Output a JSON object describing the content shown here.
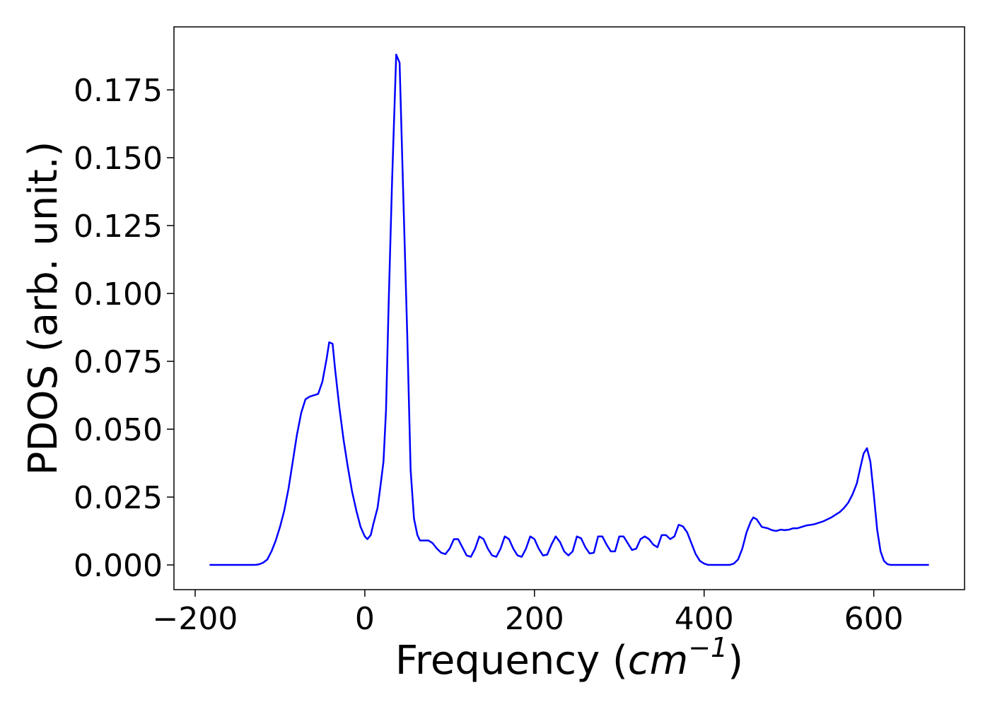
{
  "chart_data": {
    "type": "line",
    "xlabel_parts": [
      "Frequency (",
      "cm",
      "−1",
      ")"
    ],
    "ylabel": "PDOS (arb. unit.)",
    "xlim": [
      -225,
      707
    ],
    "ylim": [
      -0.0091,
      0.1982
    ],
    "xticks": [
      {
        "value": -200,
        "label": "−200"
      },
      0,
      200,
      400,
      600
    ],
    "yticks": [
      {
        "value": 0,
        "label": "0.000"
      },
      {
        "value": 0.025,
        "label": "0.025"
      },
      {
        "value": 0.05,
        "label": "0.050"
      },
      {
        "value": 0.075,
        "label": "0.075"
      },
      {
        "value": 0.1,
        "label": "0.100"
      },
      {
        "value": 0.125,
        "label": "0.125"
      },
      {
        "value": 0.15,
        "label": "0.150"
      },
      {
        "value": 0.175,
        "label": "0.175"
      }
    ],
    "series": [
      {
        "color": "#0000ff",
        "x": [
          -183,
          -170,
          -150,
          -130,
          -125,
          -120,
          -115,
          -110,
          -105,
          -100,
          -95,
          -90,
          -85,
          -80,
          -75,
          -70,
          -65,
          -60,
          -55,
          -50,
          -45,
          -42,
          -38,
          -35,
          -30,
          -25,
          -20,
          -15,
          -10,
          -5,
          0,
          3,
          7,
          10,
          15,
          18,
          22,
          25,
          28,
          32,
          37,
          41,
          45,
          50,
          54,
          58,
          62,
          65,
          70,
          75,
          80,
          85,
          90,
          95,
          100,
          105,
          110,
          115,
          120,
          125,
          130,
          135,
          140,
          145,
          150,
          155,
          160,
          165,
          170,
          175,
          180,
          185,
          190,
          195,
          200,
          205,
          210,
          215,
          220,
          225,
          230,
          235,
          240,
          245,
          250,
          255,
          260,
          265,
          270,
          275,
          280,
          285,
          290,
          295,
          300,
          305,
          310,
          315,
          320,
          325,
          330,
          335,
          340,
          345,
          350,
          355,
          360,
          365,
          370,
          375,
          380,
          385,
          390,
          395,
          400,
          405,
          430,
          435,
          440,
          445,
          450,
          455,
          458,
          462,
          468,
          475,
          480,
          485,
          490,
          495,
          500,
          505,
          510,
          515,
          520,
          530,
          540,
          550,
          560,
          565,
          570,
          575,
          580,
          585,
          588,
          592,
          596,
          600,
          604,
          608,
          612,
          616,
          620,
          665
        ],
        "values": [
          0,
          0,
          0,
          0,
          0.0002,
          0.0008,
          0.002,
          0.005,
          0.009,
          0.014,
          0.02,
          0.028,
          0.038,
          0.048,
          0.056,
          0.061,
          0.062,
          0.0625,
          0.063,
          0.0675,
          0.076,
          0.082,
          0.0815,
          0.072,
          0.058,
          0.046,
          0.036,
          0.027,
          0.02,
          0.014,
          0.0105,
          0.0095,
          0.011,
          0.015,
          0.021,
          0.028,
          0.038,
          0.057,
          0.095,
          0.14,
          0.188,
          0.185,
          0.14,
          0.085,
          0.035,
          0.017,
          0.011,
          0.009,
          0.009,
          0.009,
          0.008,
          0.006,
          0.0045,
          0.004,
          0.006,
          0.0095,
          0.0095,
          0.0065,
          0.0035,
          0.003,
          0.006,
          0.0105,
          0.0095,
          0.006,
          0.0035,
          0.003,
          0.006,
          0.0105,
          0.0095,
          0.006,
          0.0035,
          0.003,
          0.006,
          0.0105,
          0.0095,
          0.006,
          0.0035,
          0.0038,
          0.0075,
          0.0105,
          0.0085,
          0.005,
          0.0035,
          0.005,
          0.0105,
          0.0098,
          0.0065,
          0.0042,
          0.0045,
          0.0105,
          0.0105,
          0.0075,
          0.005,
          0.005,
          0.0105,
          0.0105,
          0.008,
          0.0055,
          0.006,
          0.0095,
          0.0105,
          0.0095,
          0.0075,
          0.0065,
          0.011,
          0.011,
          0.0095,
          0.0105,
          0.0148,
          0.0142,
          0.012,
          0.008,
          0.004,
          0.0015,
          0.0005,
          0,
          0,
          0.0005,
          0.002,
          0.006,
          0.012,
          0.016,
          0.0175,
          0.0168,
          0.014,
          0.0135,
          0.0128,
          0.0125,
          0.013,
          0.0128,
          0.013,
          0.0135,
          0.0135,
          0.014,
          0.0145,
          0.015,
          0.016,
          0.0175,
          0.0195,
          0.021,
          0.023,
          0.026,
          0.03,
          0.037,
          0.041,
          0.043,
          0.038,
          0.026,
          0.013,
          0.005,
          0.0015,
          0.0003,
          0,
          0
        ]
      }
    ]
  }
}
